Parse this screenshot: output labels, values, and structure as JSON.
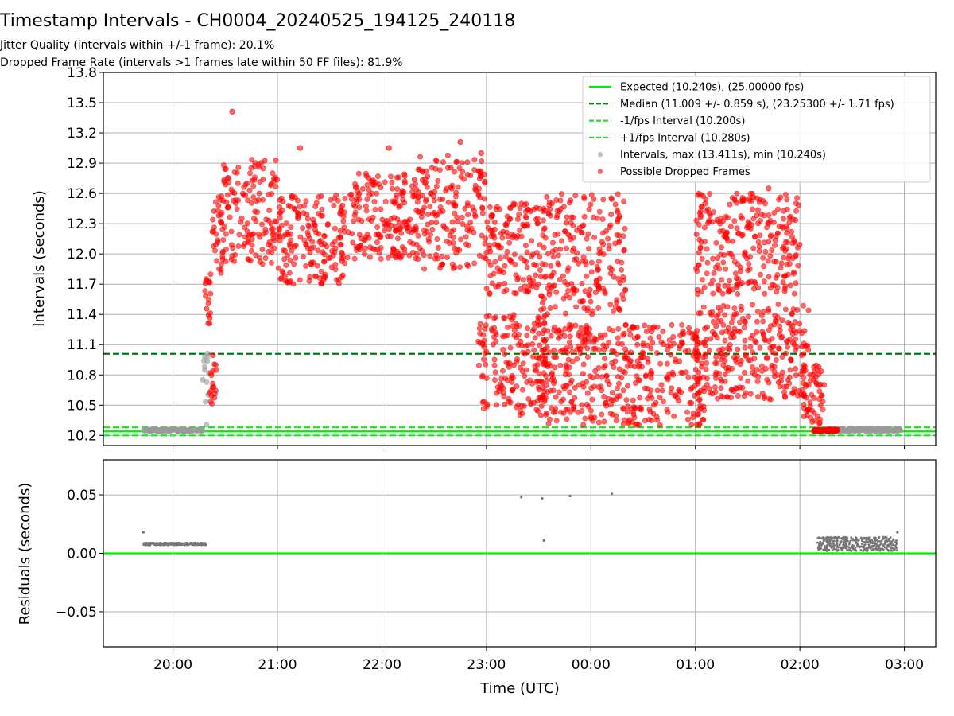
{
  "header": {
    "title": "Timestamp Intervals - CH0004_20240525_194125_240118",
    "subtitle_jitter": "Jitter Quality (intervals within +/-1 frame): 20.1%",
    "subtitle_dropped": "Dropped Frame Rate (intervals >1 frames late within 50 FF files): 81.9%"
  },
  "colors": {
    "expected": "#00ee00",
    "median": "#008000",
    "fps_bounds": "#22dd22",
    "intervals": "#999999",
    "dropped": "#ff0000",
    "residuals": "#777777",
    "grid": "#b0b0b0"
  },
  "chart_data": [
    {
      "type": "scatter",
      "panel": "intervals",
      "ylabel": "Intervals (seconds)",
      "xlabel": "",
      "ylim": [
        10.1,
        13.8
      ],
      "yticks": [
        "10.2",
        "10.5",
        "10.8",
        "11.1",
        "11.4",
        "11.7",
        "12.0",
        "12.3",
        "12.6",
        "12.9",
        "13.2",
        "13.5",
        "13.8"
      ],
      "xlim": [
        "19:20",
        "03:18"
      ],
      "xticks_at": [
        "20:00",
        "21:00",
        "22:00",
        "23:00",
        "00:00",
        "01:00",
        "02:00",
        "03:00"
      ],
      "grid": true,
      "legend_position": "top-right",
      "reference_lines": [
        {
          "name": "Expected (10.240s), (25.00000 fps)",
          "y": 10.24,
          "style": "solid"
        },
        {
          "name": "Median (11.009 +/- 0.859 s), (23.25300 +/- 1.71 fps)",
          "y": 11.009,
          "style": "dashed"
        },
        {
          "name": "-1/fps Interval (10.200s)",
          "y": 10.2,
          "style": "dashed"
        },
        {
          "name": "+1/fps Interval (10.280s)",
          "y": 10.28,
          "style": "dashed"
        }
      ],
      "series": [
        {
          "name": "Intervals, max (13.411s), min (10.240s)",
          "color": "#999999",
          "segments": [
            {
              "t_start": "19:43",
              "t_end": "20:17",
              "y_min": 10.24,
              "y_max": 10.26
            },
            {
              "t_start": "20:17",
              "t_end": "20:21",
              "y_min": 10.24,
              "y_max": 11.02
            },
            {
              "t_start": "02:15",
              "t_end": "02:58",
              "y_min": 10.24,
              "y_max": 10.27
            }
          ]
        },
        {
          "name": "Possible Dropped Frames",
          "color": "#ff0000",
          "segments": [
            {
              "t_start": "20:18",
              "t_end": "20:22",
              "y_min": 11.3,
              "y_max": 11.8
            },
            {
              "t_start": "20:21",
              "t_end": "20:25",
              "y_min": 10.45,
              "y_max": 11.0
            },
            {
              "t_start": "20:22",
              "t_end": "20:28",
              "y_min": 11.8,
              "y_max": 12.6
            },
            {
              "t_start": "20:28",
              "t_end": "21:00",
              "y_min": 11.9,
              "y_max": 12.97
            },
            {
              "t_start": "21:00",
              "t_end": "21:40",
              "y_min": 11.7,
              "y_max": 12.6
            },
            {
              "t_start": "21:40",
              "t_end": "22:20",
              "y_min": 11.95,
              "y_max": 12.8
            },
            {
              "t_start": "22:20",
              "t_end": "23:00",
              "y_min": 11.85,
              "y_max": 12.98
            },
            {
              "t_start": "23:00",
              "t_end": "23:30",
              "y_min": 11.6,
              "y_max": 12.5
            },
            {
              "t_start": "22:55",
              "t_end": "23:35",
              "y_min": 10.4,
              "y_max": 11.4
            },
            {
              "t_start": "23:30",
              "t_end": "01:05",
              "y_min": 10.3,
              "y_max": 11.3
            },
            {
              "t_start": "23:30",
              "t_end": "00:20",
              "y_min": 11.4,
              "y_max": 12.6
            },
            {
              "t_start": "01:00",
              "t_end": "02:05",
              "y_min": 10.55,
              "y_max": 11.5
            },
            {
              "t_start": "01:00",
              "t_end": "02:00",
              "y_min": 11.6,
              "y_max": 12.6
            },
            {
              "t_start": "02:02",
              "t_end": "02:14",
              "y_min": 10.3,
              "y_max": 10.9
            },
            {
              "t_start": "02:08",
              "t_end": "02:22",
              "y_min": 10.24,
              "y_max": 10.26
            }
          ],
          "outliers": [
            {
              "t": "20:34",
              "y": 13.411
            },
            {
              "t": "21:13",
              "y": 13.05
            },
            {
              "t": "22:04",
              "y": 13.05
            },
            {
              "t": "22:45",
              "y": 13.11
            },
            {
              "t": "22:57",
              "y": 13.0
            },
            {
              "t": "01:42",
              "y": 12.65
            }
          ]
        }
      ]
    },
    {
      "type": "scatter",
      "panel": "residuals",
      "ylabel": "Residuals (seconds)",
      "xlabel": "Time (UTC)",
      "ylim": [
        -0.08,
        0.08
      ],
      "yticks": [
        "−0.05",
        "0.00",
        "0.05"
      ],
      "xticks": [
        "20:00",
        "21:00",
        "22:00",
        "23:00",
        "00:00",
        "01:00",
        "02:00",
        "03:00"
      ],
      "grid": true,
      "reference_lines": [
        {
          "y": 0.0,
          "style": "solid"
        }
      ],
      "series": [
        {
          "name": "",
          "color": "#777777",
          "segments": [
            {
              "t_start": "19:43",
              "t_end": "20:19",
              "y_min": 0.007,
              "y_max": 0.009
            },
            {
              "t_start": "02:10",
              "t_end": "02:56",
              "y_min": 0.002,
              "y_max": 0.014
            }
          ],
          "points": [
            {
              "t": "19:43",
              "y": 0.018
            },
            {
              "t": "23:20",
              "y": 0.048
            },
            {
              "t": "23:32",
              "y": 0.047
            },
            {
              "t": "23:33",
              "y": 0.011
            },
            {
              "t": "23:48",
              "y": 0.049
            },
            {
              "t": "00:12",
              "y": 0.051
            },
            {
              "t": "02:56",
              "y": 0.018
            }
          ]
        }
      ]
    }
  ]
}
